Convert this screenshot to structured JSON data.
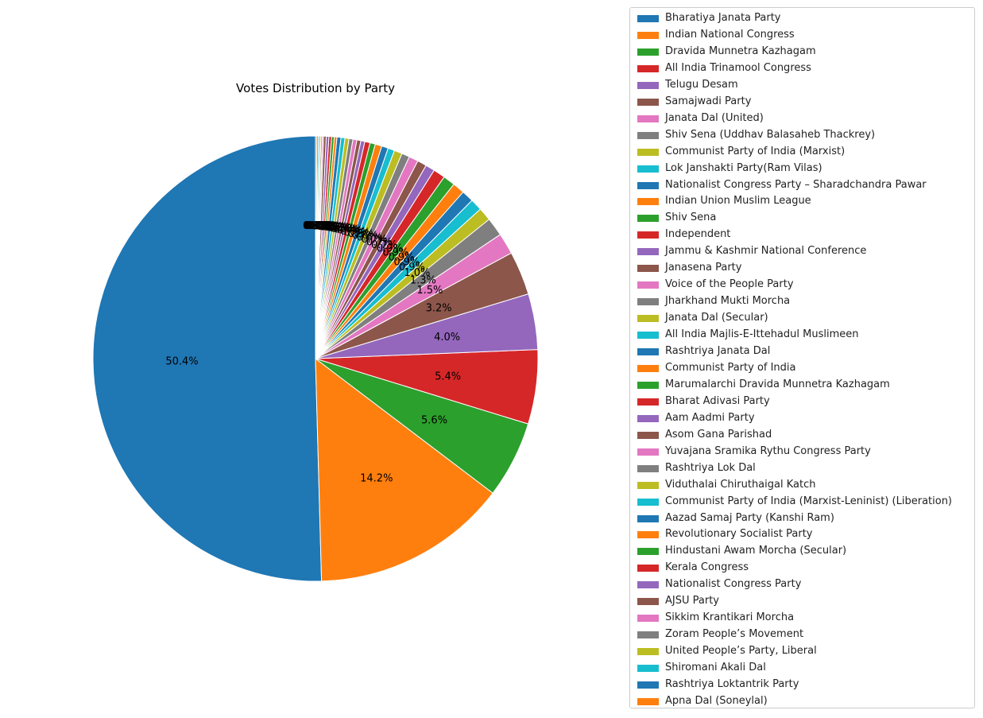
{
  "chart_data": {
    "type": "pie",
    "title": "Votes Distribution by Party",
    "start_angle_deg": 90,
    "direction": "counterclockwise",
    "legend_placement": "right",
    "autopct_format": "%.1f%%",
    "slices": [
      {
        "label": "Bharatiya Janata Party",
        "value": 52.4,
        "color": "#1f77b4"
      },
      {
        "label": "Indian National Congress",
        "value": 14.8,
        "color": "#ff7f0e"
      },
      {
        "label": "Dravida Munnetra Kazhagam",
        "value": 5.8,
        "color": "#2ca02c"
      },
      {
        "label": "All India Trinamool Congress",
        "value": 5.6,
        "color": "#d62728"
      },
      {
        "label": "Telugu Desam",
        "value": 4.2,
        "color": "#9467bd"
      },
      {
        "label": "Samajwadi Party",
        "value": 3.3,
        "color": "#8c564b"
      },
      {
        "label": "Janata Dal (United)",
        "value": 1.6,
        "color": "#e377c2"
      },
      {
        "label": "Shiv Sena (Uddhav Balasaheb Thackrey)",
        "value": 1.4,
        "color": "#7f7f7f"
      },
      {
        "label": "Communist Party of India (Marxist)",
        "value": 1.0,
        "color": "#bcbd22"
      },
      {
        "label": "Lok Janshakti Party(Ram Vilas)",
        "value": 0.9,
        "color": "#17becf"
      },
      {
        "label": "Nationalist Congress Party – Sharadchandra Pawar",
        "value": 0.9,
        "color": "#1f77b4"
      },
      {
        "label": "Indian Union Muslim League",
        "value": 0.9,
        "color": "#ff7f0e"
      },
      {
        "label": "Shiv Sena",
        "value": 0.9,
        "color": "#2ca02c"
      },
      {
        "label": "Independent",
        "value": 0.9,
        "color": "#d62728"
      },
      {
        "label": "Jammu & Kashmir National Conference",
        "value": 0.7,
        "color": "#9467bd"
      },
      {
        "label": "Janasena Party",
        "value": 0.7,
        "color": "#8c564b"
      },
      {
        "label": "Voice of the People Party",
        "value": 0.7,
        "color": "#e377c2"
      },
      {
        "label": "Jharkhand Mukti Morcha",
        "value": 0.6,
        "color": "#7f7f7f"
      },
      {
        "label": "Janata Dal (Secular)",
        "value": 0.6,
        "color": "#bcbd22"
      },
      {
        "label": "All India Majlis-E-Ittehadul Muslimeen",
        "value": 0.5,
        "color": "#17becf"
      },
      {
        "label": "Rashtriya Janata Dal",
        "value": 0.5,
        "color": "#1f77b4"
      },
      {
        "label": "Communist Party of India",
        "value": 0.5,
        "color": "#ff7f0e"
      },
      {
        "label": "Marumalarchi Dravida Munnetra Kazhagam",
        "value": 0.4,
        "color": "#2ca02c"
      },
      {
        "label": "Bharat Adivasi Party",
        "value": 0.4,
        "color": "#d62728"
      },
      {
        "label": "Aam Aadmi Party",
        "value": 0.3,
        "color": "#9467bd"
      },
      {
        "label": "Asom Gana Parishad",
        "value": 0.3,
        "color": "#8c564b"
      },
      {
        "label": "Yuvajana Sramika Rythu Congress Party",
        "value": 0.3,
        "color": "#e377c2"
      },
      {
        "label": "Rashtriya Lok Dal",
        "value": 0.3,
        "color": "#7f7f7f"
      },
      {
        "label": "Viduthalai Chiruthaigal Katch",
        "value": 0.3,
        "color": "#bcbd22"
      },
      {
        "label": "Communist Party of India (Marxist-Leninist) (Liberation)",
        "value": 0.3,
        "color": "#17becf"
      },
      {
        "label": "Aazad Samaj Party (Kanshi Ram)",
        "value": 0.3,
        "color": "#1f77b4"
      },
      {
        "label": "Revolutionary Socialist Party",
        "value": 0.2,
        "color": "#ff7f0e"
      },
      {
        "label": "Hindustani Awam Morcha (Secular)",
        "value": 0.2,
        "color": "#2ca02c"
      },
      {
        "label": "Kerala Congress",
        "value": 0.2,
        "color": "#d62728"
      },
      {
        "label": "Nationalist Congress Party",
        "value": 0.2,
        "color": "#9467bd"
      },
      {
        "label": "AJSU Party",
        "value": 0.2,
        "color": "#8c564b"
      },
      {
        "label": "Sikkim Krantikari Morcha",
        "value": 0.1,
        "color": "#e377c2"
      },
      {
        "label": "Zoram People’s Movement",
        "value": 0.1,
        "color": "#7f7f7f"
      },
      {
        "label": "United People’s Party, Liberal",
        "value": 0.1,
        "color": "#bcbd22"
      },
      {
        "label": "Shiromani Akali Dal",
        "value": 0.1,
        "color": "#17becf"
      },
      {
        "label": "Rashtriya Loktantrik Party",
        "value": 0.1,
        "color": "#1f77b4"
      },
      {
        "label": "Apna Dal (Soneylal)",
        "value": 0.1,
        "color": "#ff7f0e"
      }
    ]
  }
}
